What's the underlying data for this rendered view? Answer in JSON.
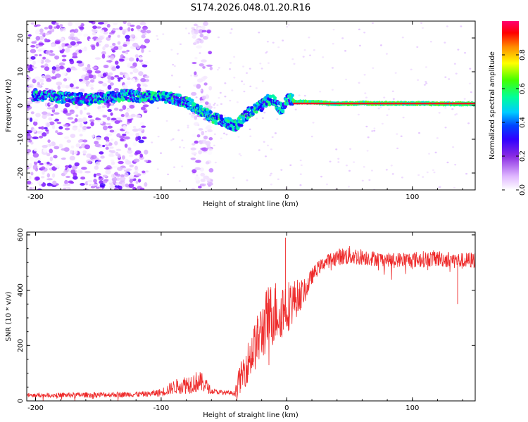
{
  "title": "S174.2026.048.01.20.R16",
  "chart_data": [
    {
      "type": "heatmap",
      "name": "spectrogram",
      "xlabel": "Height of straight line (km)",
      "ylabel": "Frequency (Hz)",
      "xlim": [
        -207,
        150
      ],
      "ylim": [
        -25,
        25
      ],
      "xticks": [
        -200,
        -100,
        0,
        100
      ],
      "xtick_labels": [
        "-200",
        "-100",
        "0",
        "100"
      ],
      "yticks": [
        -20,
        -10,
        0,
        10,
        20
      ],
      "ytick_labels": [
        "-20",
        "-10",
        "0",
        "10",
        "20"
      ],
      "colorbar": {
        "label": "Normalized spectral amplitude",
        "range": [
          0,
          1
        ],
        "ticks": [
          0.0,
          0.2,
          0.4,
          0.6,
          0.8
        ],
        "tick_labels": [
          "0.0",
          "0.2",
          "0.4",
          "0.6",
          "0.8"
        ],
        "colors": [
          "#ffffff",
          "#e6c8ff",
          "#9b30ff",
          "#6000ff",
          "#0000ff",
          "#00bfff",
          "#00ff99",
          "#66ff00",
          "#ffff00",
          "#ff8800",
          "#ff0000",
          "#ff0080"
        ]
      },
      "carrier_track": {
        "x": [
          -195,
          -170,
          -150,
          -130,
          -110,
          -100,
          -90,
          -80,
          -70,
          -62,
          -55,
          -50,
          -45,
          -40,
          -35,
          -30,
          -25,
          -20,
          -15,
          -12,
          -8,
          -5,
          -2,
          0,
          3,
          6,
          10,
          20,
          40,
          60,
          80,
          100,
          120,
          150
        ],
        "y": [
          3,
          2,
          2,
          3,
          2.5,
          2.5,
          2,
          1,
          -1,
          -3,
          -4,
          -5,
          -5.5,
          -6,
          -4,
          -2,
          -1,
          0,
          1.5,
          2,
          0.5,
          -1,
          0,
          1.5,
          2,
          1,
          1,
          1,
          0.5,
          0.7,
          0.6,
          0.6,
          0.5,
          0.5
        ]
      },
      "carrier_peak": {
        "x_range": [
          5,
          150
        ],
        "y": 0.6,
        "amplitude": 0.95
      },
      "noise_bands": [
        {
          "x_range": [
            -207,
            -110
          ],
          "amplitude": 0.3
        },
        {
          "x_range": [
            -75,
            -60
          ],
          "amplitude": 0.2
        }
      ]
    },
    {
      "type": "line",
      "name": "snr",
      "xlabel": "Height of straight line (km)",
      "ylabel": "SNR (10 * v/v)",
      "xlim": [
        -207,
        150
      ],
      "ylim": [
        0,
        610
      ],
      "xticks": [
        -200,
        -100,
        0,
        100
      ],
      "xtick_labels": [
        "-200",
        "-100",
        "0",
        "100"
      ],
      "yticks": [
        0,
        200,
        400,
        600
      ],
      "ytick_labels": [
        "0",
        "200",
        "400",
        "600"
      ],
      "color": "#ee2a2a",
      "envelope": {
        "x": [
          -207,
          -150,
          -110,
          -100,
          -90,
          -80,
          -70,
          -65,
          -60,
          -50,
          -42,
          -40,
          -35,
          -30,
          -25,
          -20,
          -15,
          -10,
          -5,
          0,
          5,
          10,
          15,
          20,
          25,
          30,
          40,
          50,
          60,
          80,
          100,
          120,
          140,
          150
        ],
        "mean": [
          20,
          22,
          25,
          30,
          50,
          60,
          70,
          60,
          35,
          30,
          28,
          50,
          100,
          150,
          200,
          250,
          300,
          320,
          330,
          340,
          360,
          380,
          400,
          450,
          480,
          500,
          520,
          525,
          520,
          510,
          510,
          515,
          505,
          510
        ],
        "amplitude": [
          8,
          10,
          10,
          15,
          25,
          35,
          40,
          30,
          10,
          8,
          8,
          40,
          60,
          80,
          90,
          110,
          120,
          120,
          110,
          100,
          80,
          60,
          40,
          30,
          25,
          25,
          30,
          35,
          30,
          25,
          30,
          30,
          30,
          30
        ]
      },
      "notable_values": [
        {
          "x": -1,
          "y": 590
        },
        {
          "x": 136,
          "y": 350
        }
      ]
    }
  ]
}
